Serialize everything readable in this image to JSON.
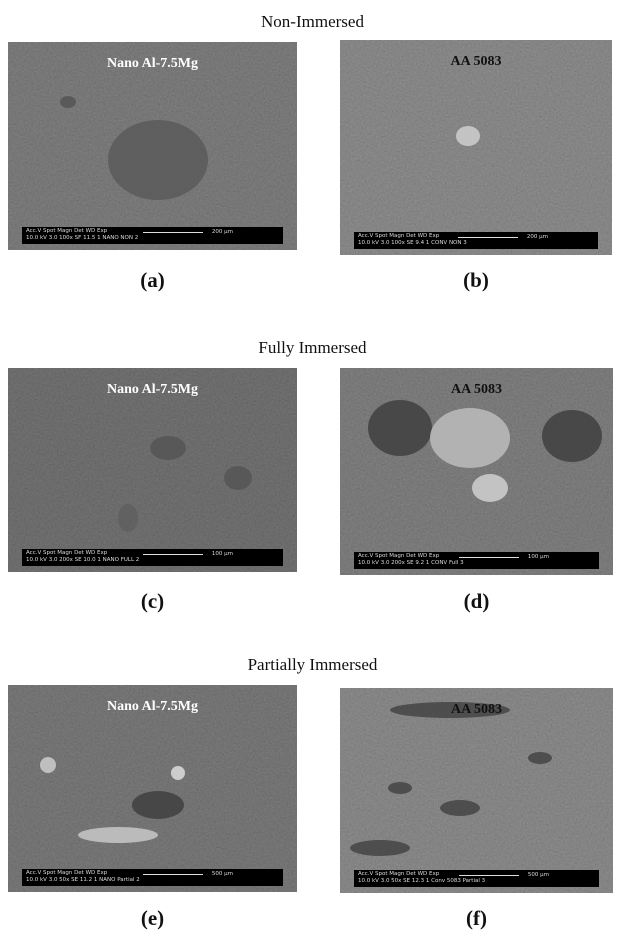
{
  "sections": [
    {
      "title": "Non-Immersed",
      "panels": [
        {
          "label": "(a)",
          "inset": "Nano Al-7.5Mg",
          "bar_header": "Acc.V Spot Magn Det WD Exp",
          "bar_info": "10.0 kV 3.0 100x SF 11.5 1 NANO NON 2",
          "scale": "200 µm"
        },
        {
          "label": "(b)",
          "inset": "AA 5083",
          "bar_header": "Acc.V Spot Magn Det WD Exp",
          "bar_info": "10.0 kV 3.0 100x SE 9.4 1 CONV NON 3",
          "scale": "200 µm"
        }
      ]
    },
    {
      "title": "Fully Immersed",
      "panels": [
        {
          "label": "(c)",
          "inset": "Nano Al-7.5Mg",
          "bar_header": "Acc.V Spot Magn Det WD Exp",
          "bar_info": "10.0 kV 3.0 200x SE 10.0 1 NANO FULL 2",
          "scale": "100 µm"
        },
        {
          "label": "(d)",
          "inset": "AA 5083",
          "bar_header": "Acc.V Spot Magn Det WD Exp",
          "bar_info": "10.0 kV 3.0 200x SE 9.2 1 CONV Full 3",
          "scale": "100 µm"
        }
      ]
    },
    {
      "title": "Partially Immersed",
      "panels": [
        {
          "label": "(e)",
          "inset": "Nano Al-7.5Mg",
          "bar_header": "Acc.V Spot Magn Det WD Exp",
          "bar_info": "10.0 kV 3.0 50x SE 11.2 1 NANO Partial 2",
          "scale": "500 µm"
        },
        {
          "label": "(f)",
          "inset": "AA 5083",
          "bar_header": "Acc.V Spot Magn Det WD Exp",
          "bar_info": "10.0 kV 3.0 50x SE 12.3 1 Conv 5083 Partial 3",
          "scale": "500 µm"
        }
      ]
    }
  ]
}
